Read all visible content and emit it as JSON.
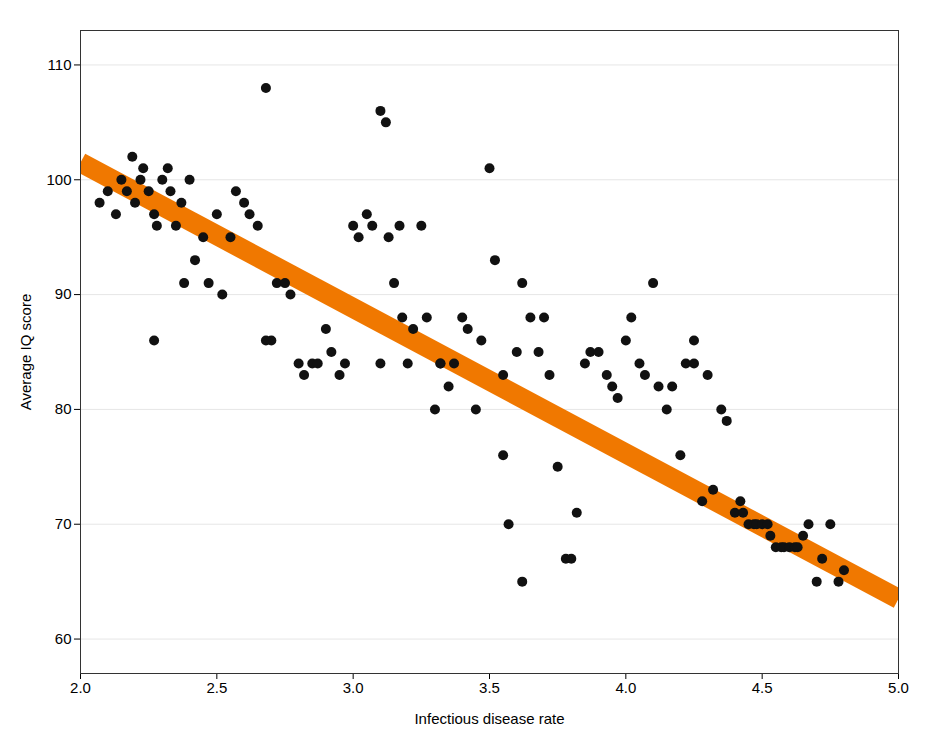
{
  "chart_data": {
    "type": "scatter",
    "xlabel": "Infectious disease rate",
    "ylabel": "Average IQ score",
    "xlim": [
      2.0,
      5.0
    ],
    "ylim": [
      57,
      113
    ],
    "xticks": [
      {
        "value": 2.0,
        "label": "2.0"
      },
      {
        "value": 2.5,
        "label": "2.5"
      },
      {
        "value": 3.0,
        "label": "3.0"
      },
      {
        "value": 3.5,
        "label": "3.5"
      },
      {
        "value": 4.0,
        "label": "4.0"
      },
      {
        "value": 4.5,
        "label": "4.5"
      },
      {
        "value": 5.0,
        "label": "5.0"
      }
    ],
    "yticks": [
      60,
      70,
      80,
      90,
      100,
      110
    ],
    "grid": "y",
    "series": [
      {
        "type": "line",
        "color": "#F07800",
        "x": [
          2.0,
          5.0
        ],
        "values": [
          101.5,
          63.5
        ]
      },
      {
        "type": "scatter",
        "color": "#111111",
        "x": [
          2.07,
          2.1,
          2.13,
          2.15,
          2.17,
          2.19,
          2.2,
          2.22,
          2.23,
          2.25,
          2.27,
          2.28,
          2.3,
          2.32,
          2.33,
          2.35,
          2.37,
          2.38,
          2.4,
          2.42,
          2.45,
          2.47,
          2.5,
          2.52,
          2.55,
          2.57,
          2.6,
          2.62,
          2.65,
          2.68,
          2.7,
          2.72,
          2.75,
          2.77,
          2.8,
          2.82,
          2.85,
          2.87,
          2.9,
          2.92,
          2.95,
          2.97,
          3.0,
          3.02,
          3.05,
          3.07,
          3.1,
          3.12,
          3.13,
          3.15,
          3.17,
          3.18,
          3.2,
          3.22,
          3.25,
          3.27,
          3.3,
          3.32,
          3.35,
          3.37,
          3.4,
          3.42,
          3.45,
          3.47,
          3.5,
          3.52,
          3.55,
          3.57,
          3.6,
          3.62,
          3.65,
          3.68,
          3.7,
          3.72,
          3.75,
          3.78,
          3.8,
          3.82,
          3.85,
          3.87,
          3.9,
          3.93,
          3.95,
          3.97,
          4.0,
          4.02,
          4.05,
          4.07,
          4.1,
          4.12,
          4.15,
          4.17,
          4.2,
          4.22,
          4.25,
          4.28,
          4.3,
          4.32,
          4.35,
          4.37,
          4.4,
          4.42,
          4.43,
          4.45,
          4.47,
          4.48,
          4.5,
          4.52,
          4.53,
          4.55,
          4.57,
          4.58,
          4.6,
          4.62,
          4.63,
          4.65,
          4.67,
          4.7,
          4.72,
          4.75,
          4.78,
          4.8,
          2.27,
          2.68,
          3.1,
          3.32,
          3.55,
          4.25,
          3.62
        ],
        "values": [
          98,
          99,
          97,
          100,
          99,
          102,
          98,
          100,
          101,
          99,
          97,
          96,
          100,
          101,
          99,
          96,
          98,
          91,
          100,
          93,
          95,
          91,
          97,
          90,
          95,
          99,
          98,
          97,
          96,
          108,
          86,
          91,
          91,
          90,
          84,
          83,
          84,
          84,
          87,
          85,
          83,
          84,
          96,
          95,
          97,
          96,
          106,
          105,
          95,
          91,
          96,
          88,
          84,
          87,
          96,
          88,
          80,
          84,
          82,
          84,
          88,
          87,
          80,
          86,
          101,
          93,
          83,
          70,
          85,
          91,
          88,
          85,
          88,
          83,
          75,
          67,
          67,
          71,
          84,
          85,
          85,
          83,
          82,
          81,
          86,
          88,
          84,
          83,
          91,
          82,
          80,
          82,
          76,
          84,
          86,
          72,
          83,
          73,
          80,
          79,
          71,
          72,
          71,
          70,
          70,
          70,
          70,
          70,
          69,
          68,
          68,
          68,
          68,
          68,
          68,
          69,
          70,
          65,
          67,
          70,
          65,
          66,
          86,
          86,
          84,
          84,
          76,
          84,
          65
        ]
      }
    ]
  }
}
